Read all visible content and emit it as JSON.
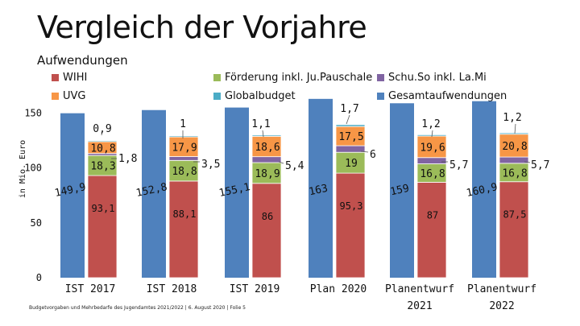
{
  "title": "Vergleich der Vorjahre",
  "subtitle": "Aufwendungen",
  "footer": "Budgetvorgaben und Mehrbedarfe des Jugendamtes 2021/2022 | 6. August 2020 | Folie 5",
  "colors": {
    "WIHI": "#c0504d",
    "UVG": "#f79646",
    "Foerderung": "#9bbb59",
    "SchuSo": "#8064a2",
    "Global": "#4bacc6",
    "Gesamt": "#4f81bd"
  },
  "legend": [
    {
      "key": "WIHI",
      "label": "WIHI"
    },
    {
      "key": "Foerderung",
      "label": "Förderung inkl. Ju.Pauschale"
    },
    {
      "key": "SchuSo",
      "label": "Schu.So inkl. La.Mi"
    },
    {
      "key": "UVG",
      "label": "UVG"
    },
    {
      "key": "Global",
      "label": "Globalbudget"
    },
    {
      "key": "Gesamt",
      "label": "Gesamtaufwendungen"
    }
  ],
  "chart_data": {
    "type": "bar",
    "title": "Vergleich der Vorjahre",
    "subtitle": "Aufwendungen",
    "ylabel": "in Mio. Euro",
    "yticks": [
      "0",
      "50",
      "100",
      "150"
    ],
    "ylim": [
      0,
      150
    ],
    "categories": [
      {
        "l1": "IST 2017",
        "l2": ""
      },
      {
        "l1": "IST 2018",
        "l2": ""
      },
      {
        "l1": "IST 2019",
        "l2": ""
      },
      {
        "l1": "Plan 2020",
        "l2": ""
      },
      {
        "l1": "Planentwurf",
        "l2": "2021"
      },
      {
        "l1": "Planentwurf",
        "l2": "2022"
      }
    ],
    "series_total": {
      "name": "Gesamtaufwendungen",
      "values": [
        149.9,
        152.8,
        155.1,
        163,
        159,
        160.9
      ],
      "labels": [
        "149,9",
        "152,8",
        "155,1",
        "163",
        "159",
        "160,9"
      ]
    },
    "stack": [
      {
        "key": "WIHI",
        "name": "WIHI",
        "values": [
          93.1,
          88.1,
          86,
          95.3,
          87,
          87.5
        ],
        "labels": [
          "93,1",
          "88,1",
          "86",
          "95,3",
          "87",
          "87,5"
        ]
      },
      {
        "key": "Foerderung",
        "name": "Förderung inkl. Ju.Pauschale",
        "values": [
          18.3,
          18.8,
          18.9,
          19,
          16.8,
          16.8
        ],
        "labels": [
          "18,3",
          "18,8",
          "18,9",
          "19",
          "16,8",
          "16,8"
        ]
      },
      {
        "key": "SchuSo",
        "name": "Schu.So inkl. La.Mi",
        "values": [
          1.8,
          3.5,
          5.4,
          6,
          5.7,
          5.7
        ],
        "labels": [
          "1,8",
          "3,5",
          "5,4",
          "6",
          "5,7",
          "5,7"
        ]
      },
      {
        "key": "UVG",
        "name": "UVG",
        "values": [
          10.8,
          17.9,
          18.6,
          17.5,
          19.6,
          20.8
        ],
        "labels": [
          "10,8",
          "17,9",
          "18,6",
          "17,5",
          "19,6",
          "20,8"
        ]
      },
      {
        "key": "Global",
        "name": "Globalbudget",
        "values": [
          0.9,
          1,
          1.1,
          1.7,
          1.2,
          1.2
        ],
        "labels": [
          "0,9",
          "1",
          "1,1",
          "1,7",
          "1,2",
          "1,2"
        ]
      }
    ]
  }
}
